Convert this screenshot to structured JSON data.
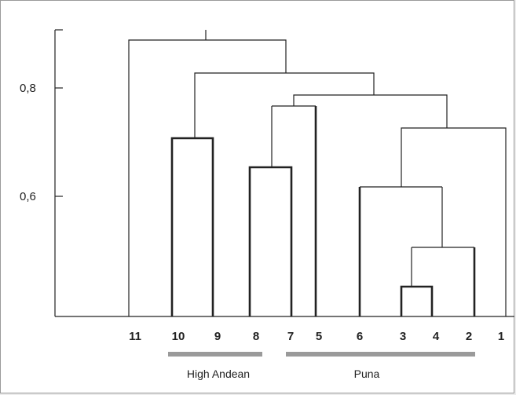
{
  "axis": {
    "ticks": [
      {
        "label": "0,8",
        "value": 0.8
      },
      {
        "label": "0,6",
        "value": 0.6
      }
    ]
  },
  "leaves": [
    "11",
    "10",
    "9",
    "8",
    "7",
    "5",
    "6",
    "3",
    "4",
    "2",
    "1"
  ],
  "groups": [
    {
      "label": "High Andean",
      "from_leaf": "10",
      "to_leaf": "8"
    },
    {
      "label": "Puna",
      "from_leaf": "7",
      "to_leaf": "2"
    }
  ],
  "colors": {
    "lines": "#222222",
    "group_bar": "#9a9a9a"
  }
}
